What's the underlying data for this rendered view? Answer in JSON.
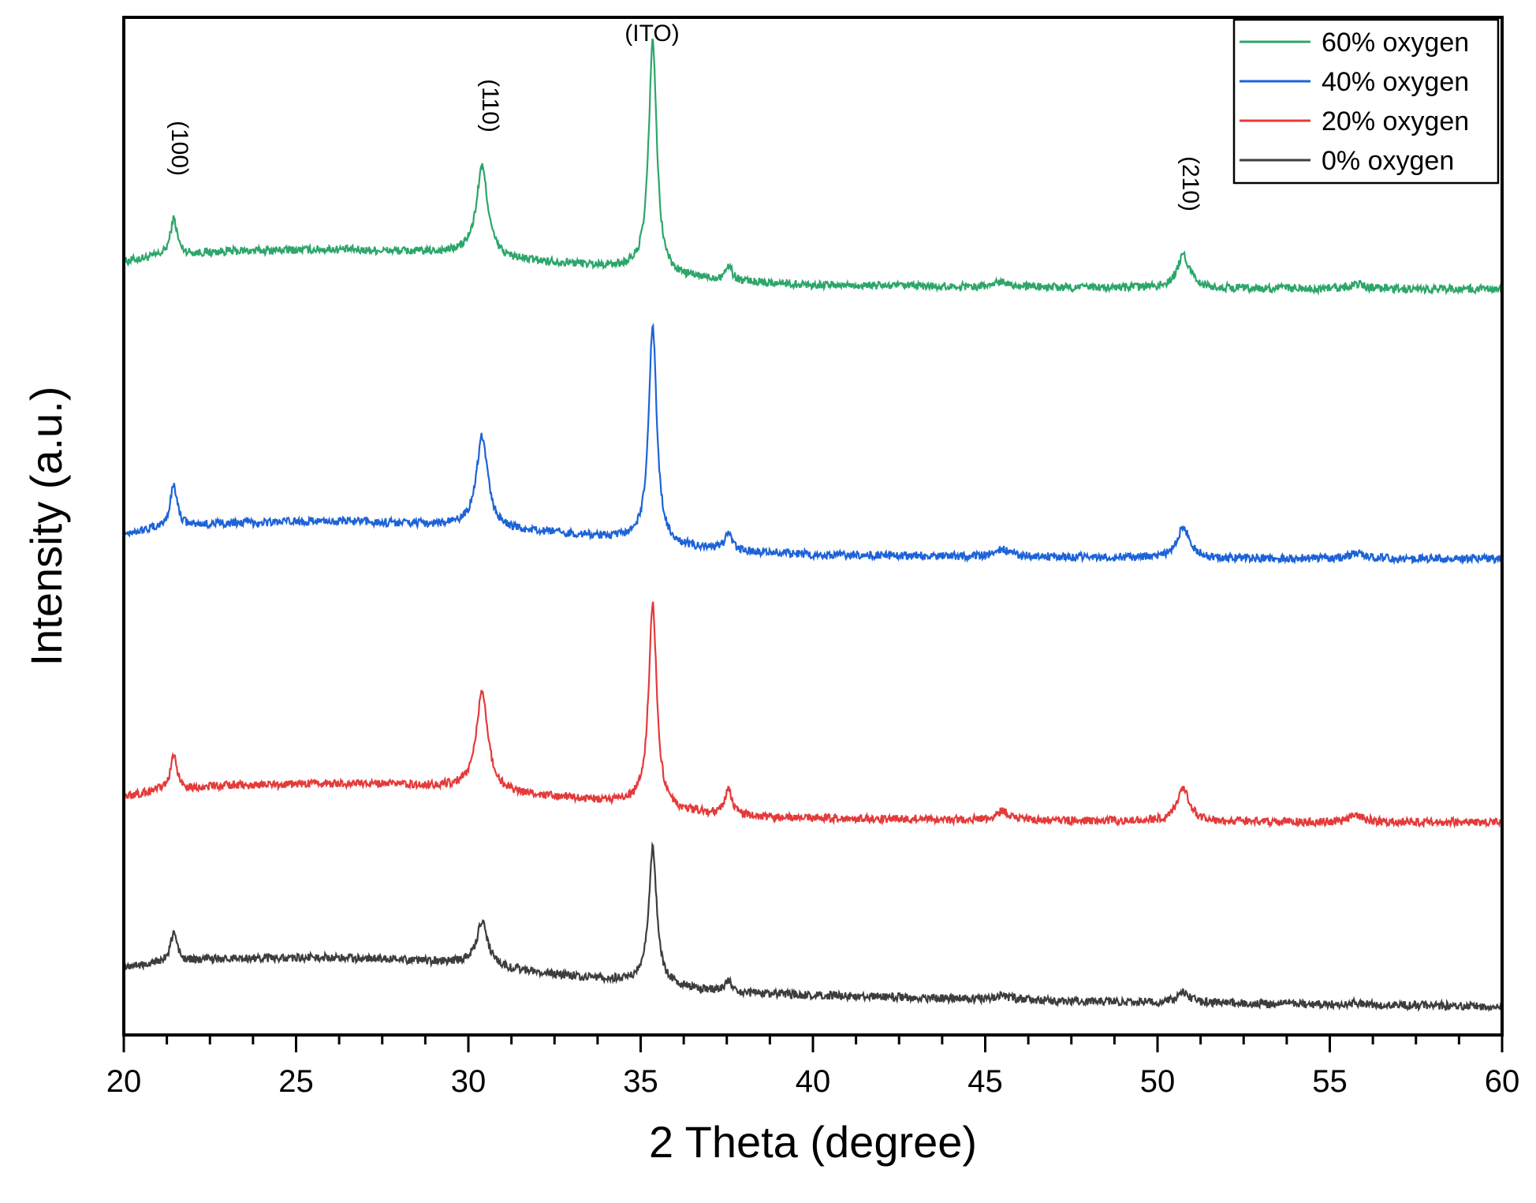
{
  "chart_data": {
    "type": "line",
    "title": "",
    "xlabel": "2 Theta (degree)",
    "ylabel": "Intensity (a.u.)",
    "xlim": [
      20,
      60
    ],
    "ylim": [
      0,
      1
    ],
    "xticks": [
      "20",
      "25",
      "30",
      "35",
      "40",
      "45",
      "50",
      "55",
      "60"
    ],
    "yticks_shown": false,
    "grid": false,
    "legend_position": "top-right",
    "annotations": [
      {
        "text": "(100)",
        "x": 21.5,
        "rotated": true
      },
      {
        "text": "(110)",
        "x": 30.5,
        "rotated": true
      },
      {
        "text": "(ITO)",
        "x": 35.4,
        "rotated": false
      },
      {
        "text": "(210)",
        "x": 50.7,
        "rotated": true
      }
    ],
    "peaks": [
      {
        "x": 21.45,
        "width": 0.12,
        "id": "p100"
      },
      {
        "x": 30.4,
        "width": 0.2,
        "id": "p110"
      },
      {
        "x": 35.35,
        "width": 0.14,
        "id": "pITO"
      },
      {
        "x": 37.55,
        "width": 0.12,
        "id": "p375"
      },
      {
        "x": 45.5,
        "width": 0.25,
        "id": "p455"
      },
      {
        "x": 50.75,
        "width": 0.22,
        "id": "p210"
      },
      {
        "x": 55.8,
        "width": 0.25,
        "id": "p558"
      }
    ],
    "series": [
      {
        "name": "60% oxygen",
        "color": "#2ca66a",
        "baseline": [
          [
            20,
            0.76
          ],
          [
            21,
            0.765
          ],
          [
            23,
            0.77
          ],
          [
            26,
            0.772
          ],
          [
            28,
            0.77
          ],
          [
            30,
            0.768
          ],
          [
            31,
            0.762
          ],
          [
            33,
            0.758
          ],
          [
            35,
            0.752
          ],
          [
            36,
            0.745
          ],
          [
            38,
            0.74
          ],
          [
            40,
            0.737
          ],
          [
            45,
            0.735
          ],
          [
            50,
            0.734
          ],
          [
            55,
            0.733
          ],
          [
            60,
            0.733
          ]
        ],
        "peak_heights": {
          "p100": 0.036,
          "p110": 0.087,
          "pITO": 0.227,
          "p375": 0.014,
          "p455": 0.006,
          "p210": 0.032,
          "p558": 0.005
        }
      },
      {
        "name": "40% oxygen",
        "color": "#1d63d8",
        "baseline": [
          [
            20,
            0.493
          ],
          [
            21,
            0.498
          ],
          [
            23,
            0.503
          ],
          [
            26,
            0.505
          ],
          [
            28,
            0.503
          ],
          [
            30,
            0.5
          ],
          [
            31,
            0.496
          ],
          [
            33,
            0.492
          ],
          [
            35,
            0.486
          ],
          [
            36,
            0.48
          ],
          [
            38,
            0.475
          ],
          [
            40,
            0.472
          ],
          [
            45,
            0.47
          ],
          [
            50,
            0.469
          ],
          [
            55,
            0.468
          ],
          [
            60,
            0.468
          ]
        ],
        "peak_heights": {
          "p100": 0.042,
          "p110": 0.09,
          "pITO": 0.212,
          "p375": 0.016,
          "p455": 0.008,
          "p210": 0.03,
          "p558": 0.006
        }
      },
      {
        "name": "20% oxygen",
        "color": "#e53a3a",
        "baseline": [
          [
            20,
            0.234
          ],
          [
            21,
            0.24
          ],
          [
            23,
            0.245
          ],
          [
            26,
            0.247
          ],
          [
            28,
            0.246
          ],
          [
            30,
            0.243
          ],
          [
            31,
            0.238
          ],
          [
            33,
            0.232
          ],
          [
            35,
            0.227
          ],
          [
            36,
            0.22
          ],
          [
            38,
            0.215
          ],
          [
            40,
            0.213
          ],
          [
            45,
            0.211
          ],
          [
            50,
            0.21
          ],
          [
            55,
            0.209
          ],
          [
            60,
            0.209
          ]
        ],
        "peak_heights": {
          "p100": 0.032,
          "p110": 0.097,
          "pITO": 0.2,
          "p375": 0.024,
          "p455": 0.009,
          "p210": 0.032,
          "p558": 0.007
        }
      },
      {
        "name": "0% oxygen",
        "color": "#3d3d3d",
        "baseline": [
          [
            20,
            0.067
          ],
          [
            21,
            0.071
          ],
          [
            23,
            0.075
          ],
          [
            26,
            0.076
          ],
          [
            28,
            0.074
          ],
          [
            30,
            0.07
          ],
          [
            31,
            0.065
          ],
          [
            33,
            0.058
          ],
          [
            35,
            0.052
          ],
          [
            36,
            0.047
          ],
          [
            38,
            0.041
          ],
          [
            40,
            0.039
          ],
          [
            45,
            0.035
          ],
          [
            50,
            0.032
          ],
          [
            55,
            0.03
          ],
          [
            60,
            0.028
          ]
        ],
        "peak_heights": {
          "p100": 0.028,
          "p110": 0.042,
          "pITO": 0.134,
          "p375": 0.01,
          "p455": 0.004,
          "p210": 0.01,
          "p558": 0.002
        }
      }
    ]
  }
}
